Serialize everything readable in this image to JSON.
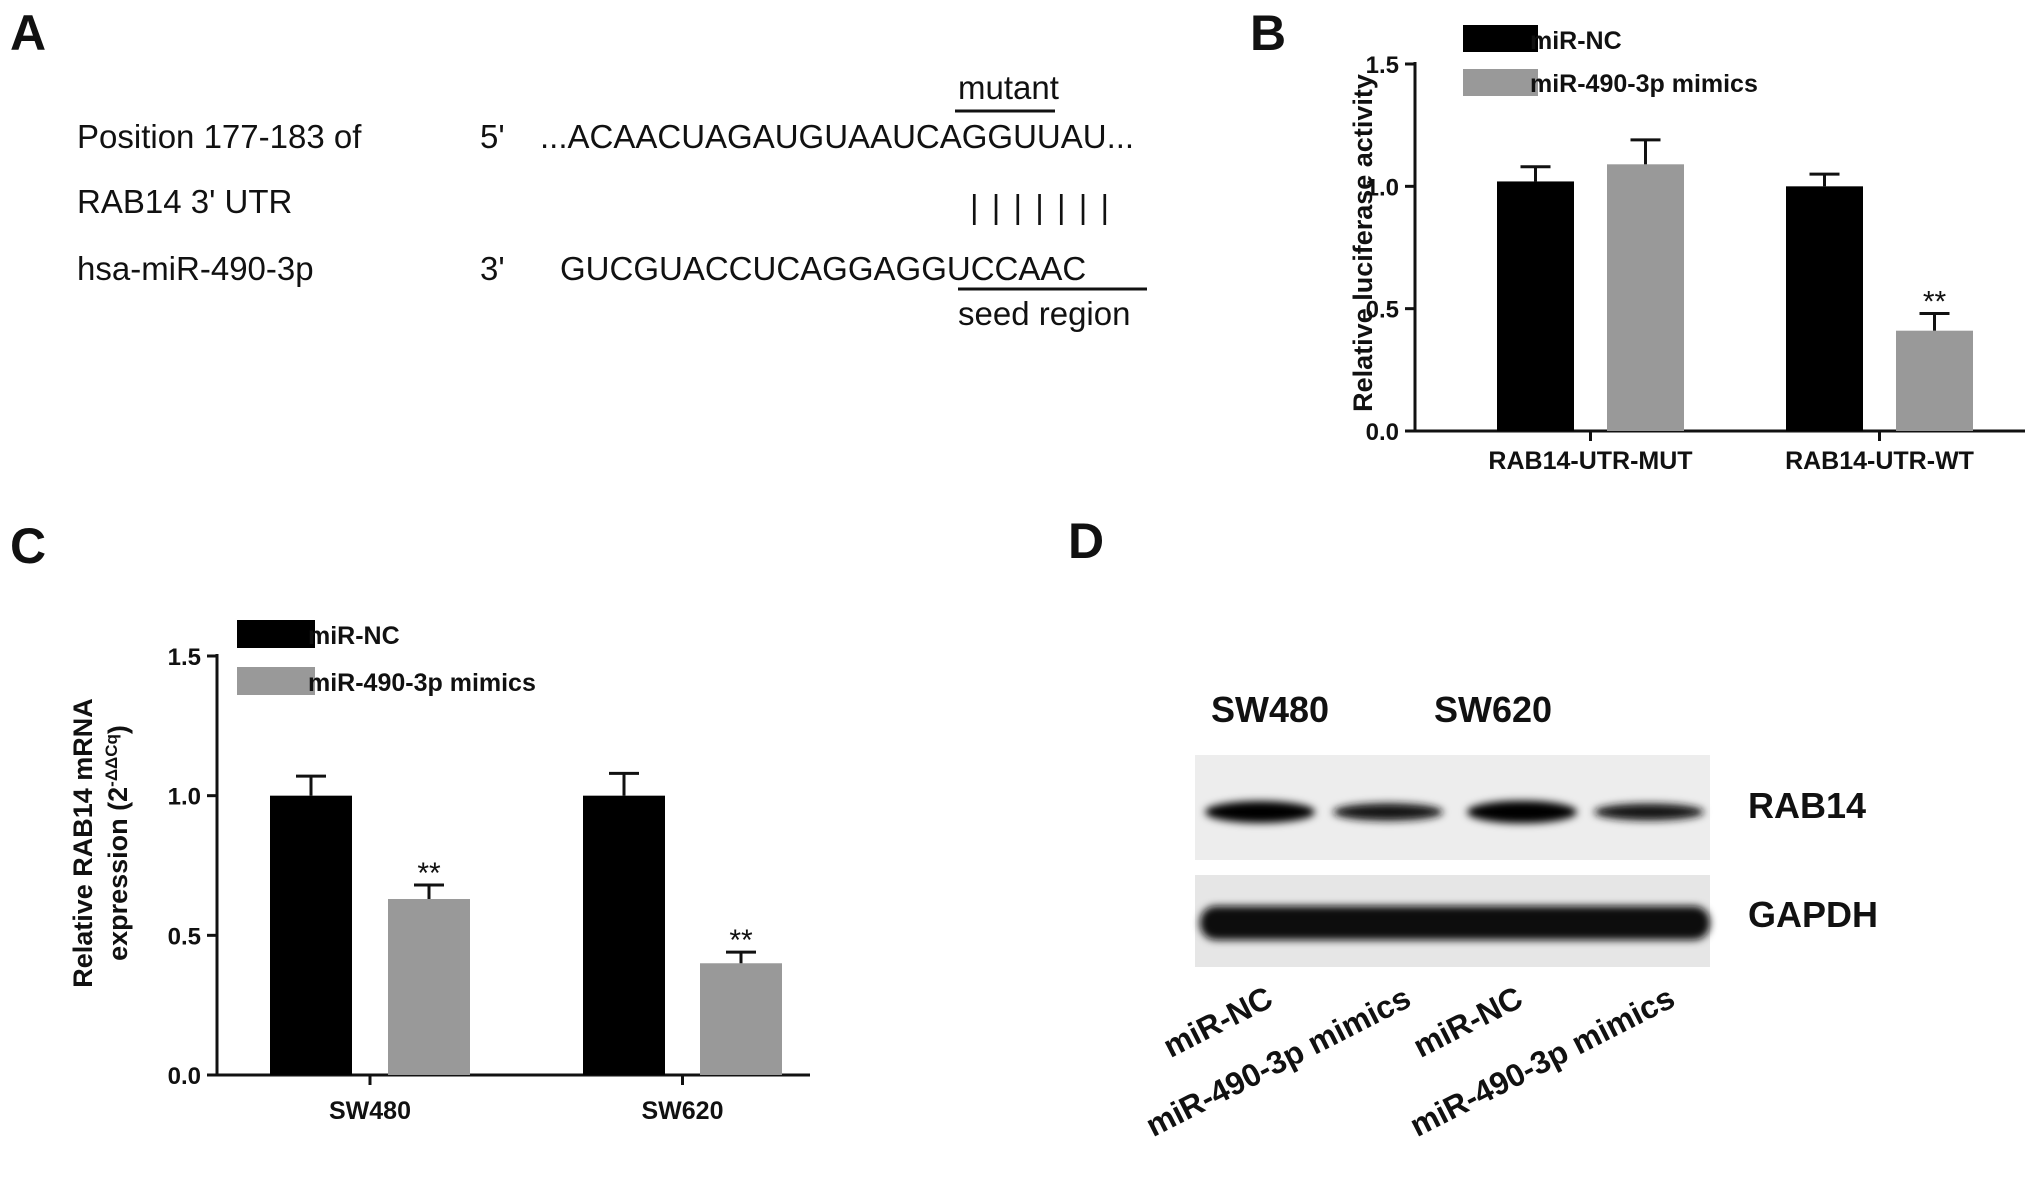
{
  "panels": {
    "a": "A",
    "b": "B",
    "c": "C",
    "d": "D"
  },
  "panel_a": {
    "label1_line1": "Position 177-183 of",
    "label1_line2": "RAB14 3' UTR",
    "label2": "hsa-miR-490-3p",
    "end1": "5'",
    "end2": "3'",
    "seq1": "...ACAACUAGAUGUAAUCAGGUUAU...",
    "seq2": "GUCGUACCUCAGGAGGUCCAAC",
    "pairing": "| | | | | | |",
    "mutant_label": "mutant",
    "seed_label": "seed region"
  },
  "colors": {
    "series1": "#000000",
    "series2": "#999999",
    "axis": "#111111"
  },
  "chart_data": [
    {
      "type": "bar",
      "panel": "B",
      "categories": [
        "RAB14-UTR-MUT",
        "RAB14-UTR-WT"
      ],
      "series": [
        {
          "name": "miR-NC",
          "values": [
            1.02,
            1.0
          ],
          "errors": [
            0.06,
            0.05
          ]
        },
        {
          "name": "miR-490-3p mimics",
          "values": [
            1.09,
            0.41
          ],
          "errors": [
            0.1,
            0.07
          ]
        }
      ],
      "significance": [
        {
          "category": 1,
          "series": 1,
          "label": "**"
        }
      ],
      "title": "",
      "xlabel": "",
      "ylabel": "Relative luciferase activity",
      "ylim": [
        0,
        1.5
      ],
      "yticks": [
        "0.0",
        "0.5",
        "1.0",
        "1.5"
      ],
      "legend": "top-left"
    },
    {
      "type": "bar",
      "panel": "C",
      "categories": [
        "SW480",
        "SW620"
      ],
      "series": [
        {
          "name": "miR-NC",
          "values": [
            1.0,
            1.0
          ],
          "errors": [
            0.07,
            0.08
          ]
        },
        {
          "name": "miR-490-3p mimics",
          "values": [
            0.63,
            0.4
          ],
          "errors": [
            0.05,
            0.04
          ]
        }
      ],
      "significance": [
        {
          "category": 0,
          "series": 1,
          "label": "**"
        },
        {
          "category": 1,
          "series": 1,
          "label": "**"
        }
      ],
      "title": "",
      "xlabel": "",
      "ylabel_line1": "Relative RAB14 mRNA",
      "ylabel_line2": "expression (2",
      "ylabel_sup": "-ΔΔCq",
      "ylabel_close": ")",
      "ylim": [
        0,
        1.5
      ],
      "yticks": [
        "0.0",
        "0.5",
        "1.0",
        "1.5"
      ],
      "legend": "top-left"
    }
  ],
  "panel_d": {
    "cell_lines": [
      "SW480",
      "SW620"
    ],
    "proteins": [
      "RAB14",
      "GAPDH"
    ],
    "lanes": [
      "miR-NC",
      "miR-490-3p mimics",
      "miR-NC",
      "miR-490-3p mimics"
    ],
    "rab14_intensity": [
      0.85,
      0.55,
      0.9,
      0.5
    ]
  }
}
